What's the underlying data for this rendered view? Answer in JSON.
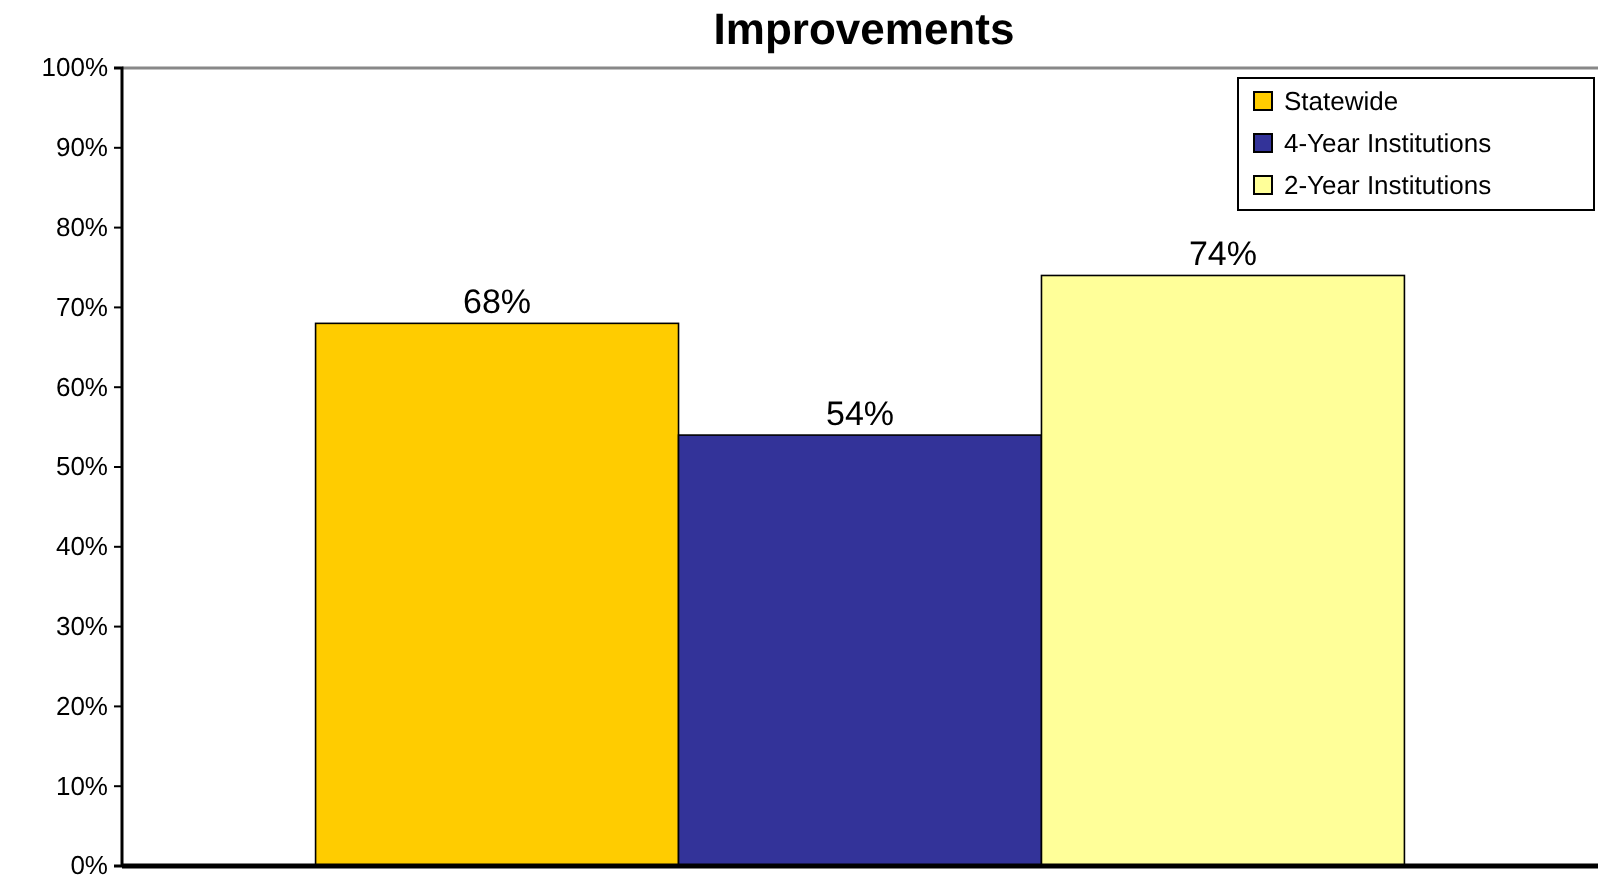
{
  "chart_data": {
    "type": "bar",
    "title": "Improvements",
    "categories": [
      null
    ],
    "series": [
      {
        "name": "Statewide",
        "color": "#ffcc00",
        "values": [
          68
        ],
        "value_labels": [
          "68%"
        ]
      },
      {
        "name": "4-Year Institutions",
        "color": "#333399",
        "values": [
          54
        ],
        "value_labels": [
          "54%"
        ]
      },
      {
        "name": "2-Year Institutions",
        "color": "#ffff99",
        "values": [
          74
        ],
        "value_labels": [
          "74%"
        ]
      }
    ],
    "ylim": [
      0,
      100
    ],
    "yticks": [
      {
        "value": 0,
        "label": "0%"
      },
      {
        "value": 10,
        "label": "10%"
      },
      {
        "value": 20,
        "label": "20%"
      },
      {
        "value": 30,
        "label": "30%"
      },
      {
        "value": 40,
        "label": "40%"
      },
      {
        "value": 50,
        "label": "50%"
      },
      {
        "value": 60,
        "label": "60%"
      },
      {
        "value": 70,
        "label": "70%"
      },
      {
        "value": 80,
        "label": "80%"
      },
      {
        "value": 90,
        "label": "90%"
      },
      {
        "value": 100,
        "label": "100%"
      }
    ],
    "grid": false,
    "legend": "top right"
  }
}
